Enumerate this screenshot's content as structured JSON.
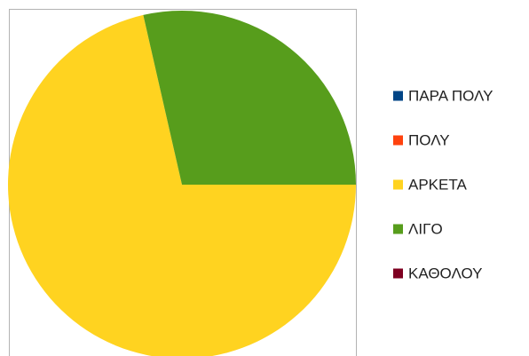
{
  "chart_data": {
    "type": "pie",
    "categories": [
      "ΠΑΡΑ ΠΟΛΥ",
      "ΠΟΛΥ",
      "ΑΡΚΕΤΑ",
      "ΛΙΓΟ",
      "ΚΑΘΟΛΟΥ"
    ],
    "values": [
      0,
      0,
      5,
      2,
      0
    ],
    "colors": [
      "#004586",
      "#ff420e",
      "#ffd320",
      "#579d1c",
      "#7e0021"
    ],
    "start_angle": 90,
    "legend": "right"
  }
}
